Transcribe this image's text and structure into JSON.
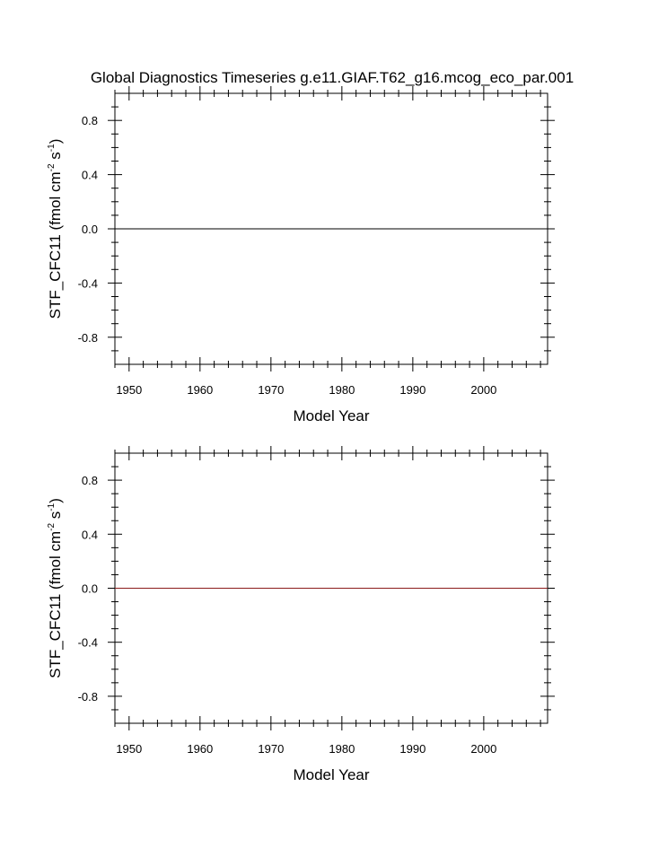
{
  "title": "Global Diagnostics Timeseries g.e11.GIAF.T62_g16.mcog_eco_par.001",
  "chart_data": [
    {
      "type": "line",
      "xlabel": "Model Year",
      "ylabel": {
        "prefix": "STF_CFC11 (fmol cm",
        "sup1": "-2",
        "mid": " s",
        "sup2": "-1",
        "suffix": ")"
      },
      "xlim": [
        1948,
        2009
      ],
      "ylim": [
        -1,
        1
      ],
      "x_ticks": [
        1950,
        1960,
        1970,
        1980,
        1990,
        2000
      ],
      "x_tick_labels": [
        "1950",
        "1960",
        "1970",
        "1980",
        "1990",
        "2000"
      ],
      "y_ticks": [
        0.8,
        0.4,
        0.0,
        -0.4,
        -0.8
      ],
      "y_tick_labels": [
        "0.8",
        "0.4",
        "0.0",
        "-0.4",
        "-0.8"
      ],
      "series": [
        {
          "color": "#000000",
          "x": [
            1948,
            2009
          ],
          "y": [
            0,
            0
          ]
        }
      ]
    },
    {
      "type": "line",
      "xlabel": "Model Year",
      "ylabel": {
        "prefix": "STF_CFC11 (fmol cm",
        "sup1": "-2",
        "mid": " s",
        "sup2": "-1",
        "suffix": ")"
      },
      "xlim": [
        1948,
        2009
      ],
      "ylim": [
        -1,
        1
      ],
      "x_ticks": [
        1950,
        1960,
        1970,
        1980,
        1990,
        2000
      ],
      "x_tick_labels": [
        "1950",
        "1960",
        "1970",
        "1980",
        "1990",
        "2000"
      ],
      "y_ticks": [
        0.8,
        0.4,
        0.0,
        -0.4,
        -0.8
      ],
      "y_tick_labels": [
        "0.8",
        "0.4",
        "0.0",
        "-0.4",
        "-0.8"
      ],
      "series": [
        {
          "color": "#8b1a1a",
          "x": [
            1948,
            2009
          ],
          "y": [
            0,
            0
          ]
        }
      ]
    }
  ]
}
